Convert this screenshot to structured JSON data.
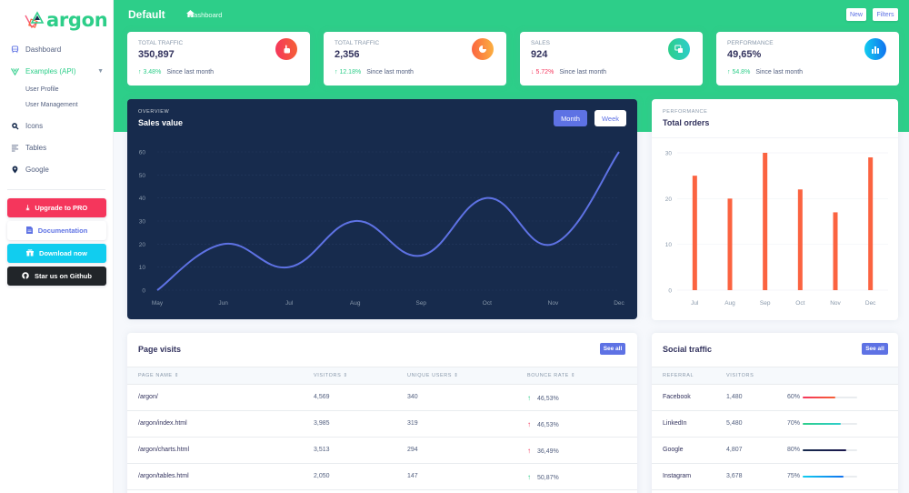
{
  "brand": {
    "name": "argon",
    "color": "#2dce89"
  },
  "sidebar": {
    "items": [
      {
        "label": "Dashboard",
        "icon": "tv-icon"
      },
      {
        "label": "Examples (API)",
        "icon": "vue-icon",
        "active": true,
        "expanded": true
      },
      {
        "label": "Icons",
        "icon": "planet-icon"
      },
      {
        "label": "Tables",
        "icon": "list-icon"
      },
      {
        "label": "Google",
        "icon": "pin-icon"
      }
    ],
    "subitems": [
      {
        "label": "User Profile"
      },
      {
        "label": "User Management"
      }
    ],
    "buttons": [
      {
        "label": "Upgrade to PRO",
        "icon": "download-icon",
        "color": "#f5365c"
      },
      {
        "label": "Documentation",
        "icon": "document-icon",
        "color": "#ffffff"
      },
      {
        "label": "Download now",
        "icon": "gift-icon",
        "color": "#11cdef"
      },
      {
        "label": "Star us on Github",
        "icon": "github-icon",
        "color": "#212529"
      }
    ]
  },
  "header": {
    "title": "Default",
    "breadcrumb": "dashboard",
    "new_label": "New",
    "filters_label": "Filters"
  },
  "stats": [
    {
      "label": "TOTAL TRAFFIC",
      "value": "350,897",
      "icon": "hand-pointer-icon",
      "icon_color": "#f5365c",
      "change": "3.48%",
      "direction": "up",
      "since": "Since last month"
    },
    {
      "label": "TOTAL TRAFFIC",
      "value": "2,356",
      "icon": "pie-chart-icon",
      "icon_color": "#fb6340",
      "change": "12.18%",
      "direction": "up",
      "since": "Since last month"
    },
    {
      "label": "SALES",
      "value": "924",
      "icon": "money-icon",
      "icon_color": "#2bbd9e",
      "change": "5.72%",
      "direction": "down",
      "since": "Since last month"
    },
    {
      "label": "PERFORMANCE",
      "value": "49,65%",
      "icon": "bar-chart-icon",
      "icon_color": "#1a8de8",
      "change": "54.8%",
      "direction": "up",
      "since": "Since last month"
    }
  ],
  "sales_card": {
    "overline": "OVERVIEW",
    "title": "Sales value",
    "toggle_month": "Month",
    "toggle_week": "Week"
  },
  "orders_card": {
    "overline": "PERFORMANCE",
    "title": "Total orders"
  },
  "chart_data": [
    {
      "type": "line",
      "title": "Sales value",
      "categories": [
        "May",
        "Jun",
        "Jul",
        "Aug",
        "Sep",
        "Oct",
        "Nov",
        "Dec"
      ],
      "values": [
        0,
        20,
        10,
        30,
        15,
        40,
        20,
        60
      ],
      "ylim": [
        0,
        60
      ],
      "yticks": [
        0,
        10,
        20,
        30,
        40,
        50,
        60
      ],
      "grid": true,
      "line_color": "#5e72e4"
    },
    {
      "type": "bar",
      "title": "Total orders",
      "categories": [
        "Jul",
        "Aug",
        "Sep",
        "Oct",
        "Nov",
        "Dec"
      ],
      "values": [
        25,
        20,
        30,
        22,
        17,
        29
      ],
      "ylim": [
        0,
        30
      ],
      "yticks": [
        0,
        10,
        20,
        30
      ],
      "grid": true,
      "bar_color": "#fb6340"
    }
  ],
  "page_visits": {
    "title": "Page visits",
    "see_all": "See all",
    "columns": [
      "PAGE NAME",
      "VISITORS",
      "UNIQUE USERS",
      "BOUNCE RATE"
    ],
    "rows": [
      {
        "page": "/argon/",
        "visitors": "4,569",
        "unique": "340",
        "bounce": "46,53%",
        "trend": "up"
      },
      {
        "page": "/argon/index.html",
        "visitors": "3,985",
        "unique": "319",
        "bounce": "46,53%",
        "trend": "down"
      },
      {
        "page": "/argon/charts.html",
        "visitors": "3,513",
        "unique": "294",
        "bounce": "36,49%",
        "trend": "down"
      },
      {
        "page": "/argon/tables.html",
        "visitors": "2,050",
        "unique": "147",
        "bounce": "50,87%",
        "trend": "up"
      }
    ]
  },
  "social_traffic": {
    "title": "Social traffic",
    "see_all": "See all",
    "columns": [
      "REFERRAL",
      "VISITORS"
    ],
    "rows": [
      {
        "referral": "Facebook",
        "visitors": "1,480",
        "percent": "60%",
        "value": 60,
        "gradient": [
          "#f5365c",
          "#f56036"
        ]
      },
      {
        "referral": "LinkedIn",
        "visitors": "5,480",
        "percent": "70%",
        "value": 70,
        "gradient": [
          "#2dce89",
          "#2dcecc"
        ]
      },
      {
        "referral": "Google",
        "visitors": "4,807",
        "percent": "80%",
        "value": 80,
        "gradient": [
          "#172b4d",
          "#1a174d"
        ]
      },
      {
        "referral": "Instagram",
        "visitors": "3,678",
        "percent": "75%",
        "value": 75,
        "gradient": [
          "#11cdef",
          "#1171ef"
        ]
      }
    ]
  }
}
